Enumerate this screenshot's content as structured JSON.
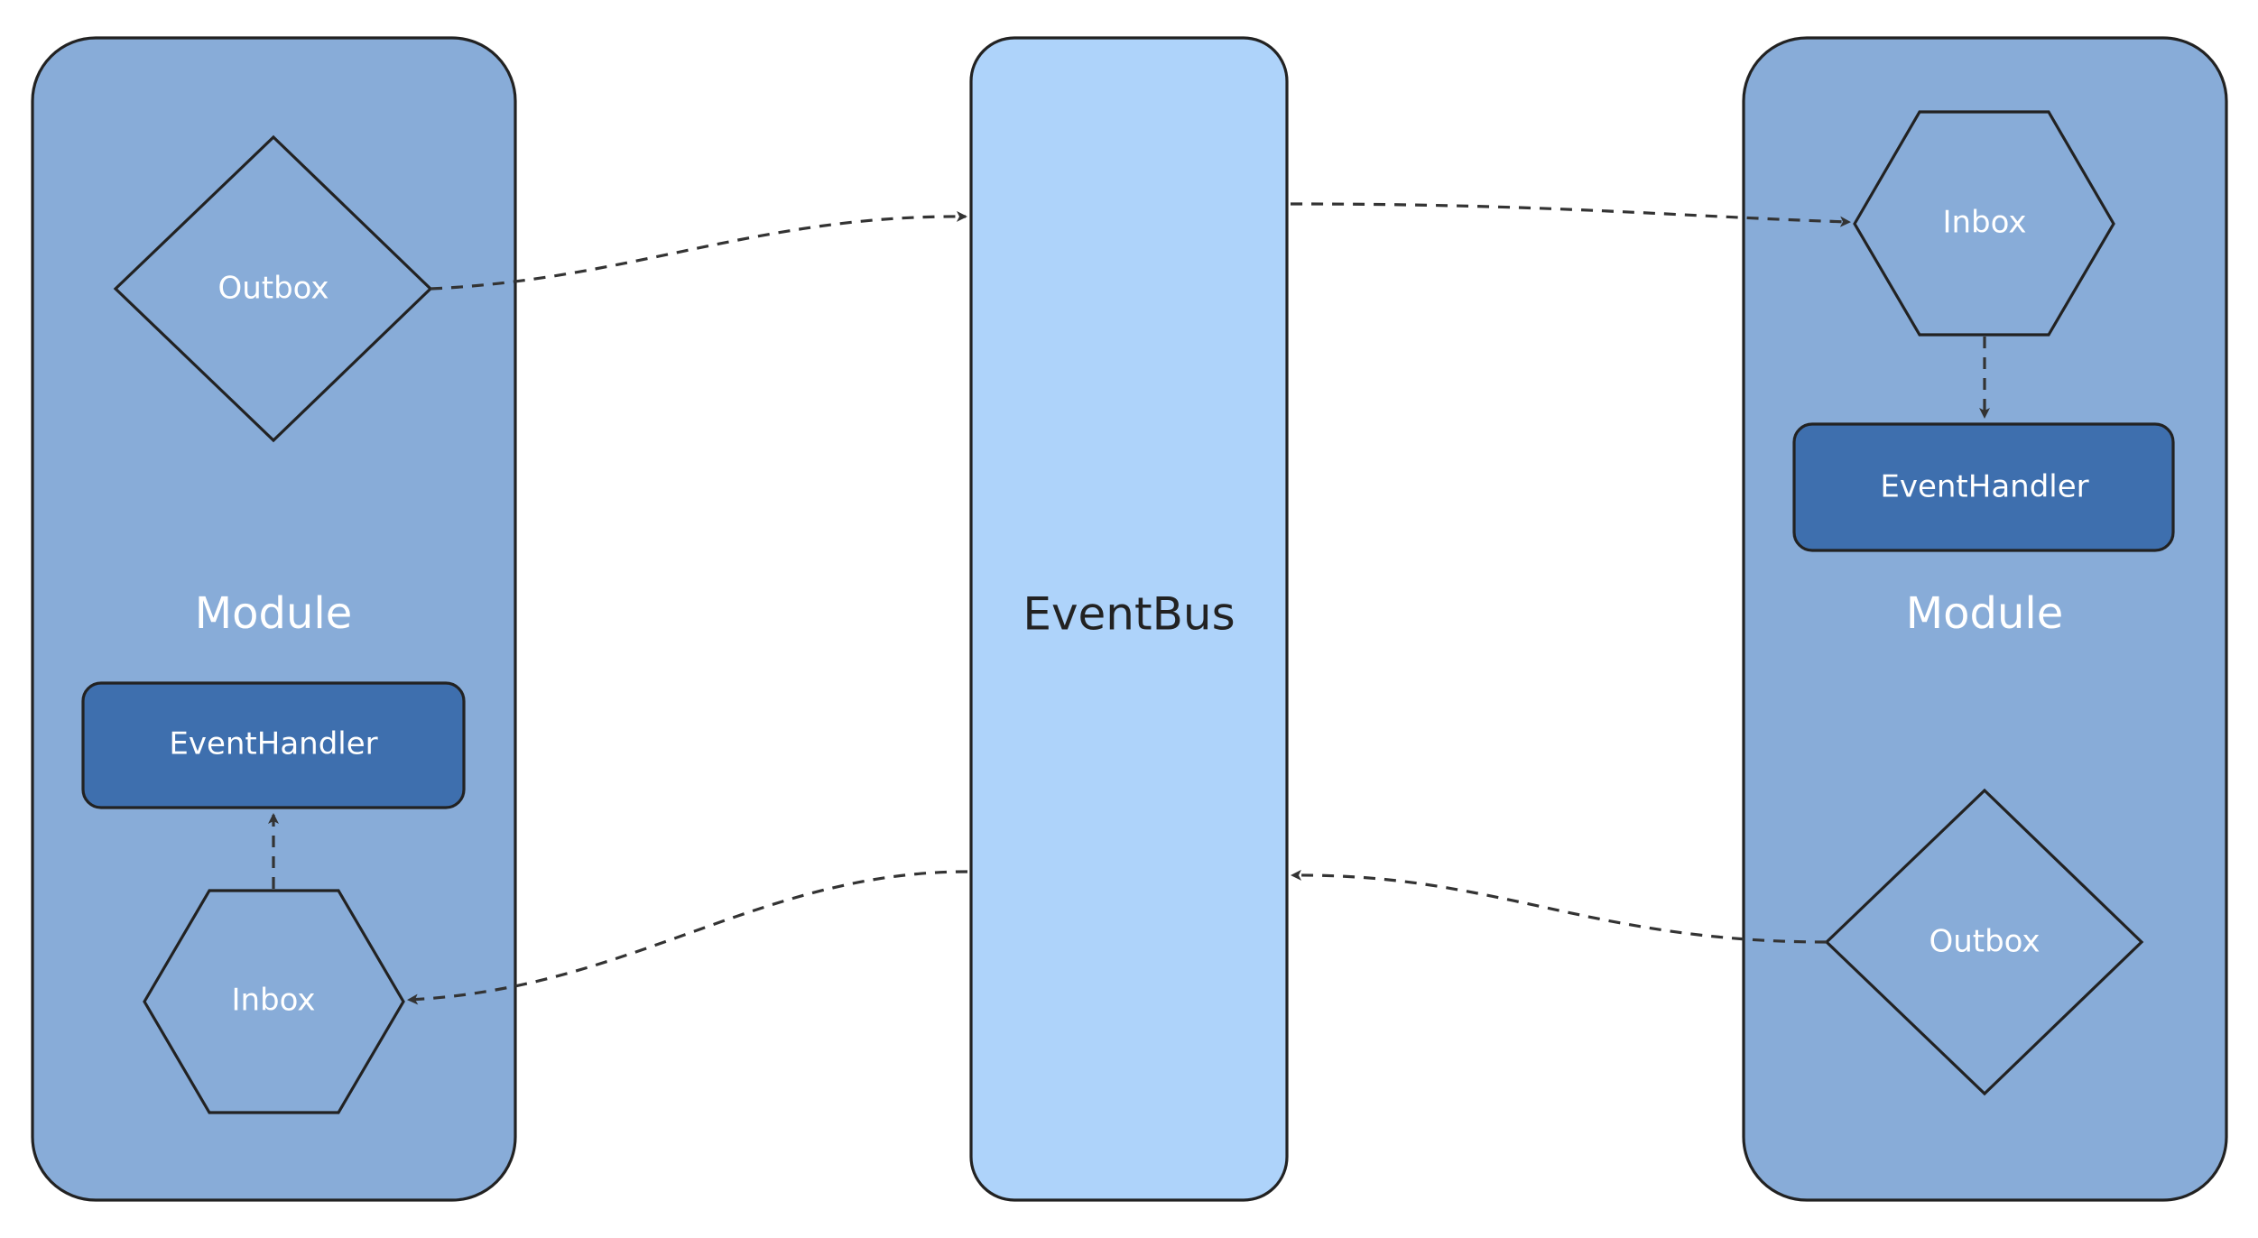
{
  "colors": {
    "module_fill": "#88acd8",
    "bus_fill": "#aed3fa",
    "handler_fill": "#3e6fae",
    "stroke": "#222222",
    "connector": "#333333"
  },
  "left_module": {
    "label": "Module",
    "outbox": "Outbox",
    "handler": "EventHandler",
    "inbox": "Inbox"
  },
  "event_bus": {
    "label": "EventBus"
  },
  "right_module": {
    "label": "Module",
    "inbox": "Inbox",
    "handler": "EventHandler",
    "outbox": "Outbox"
  }
}
